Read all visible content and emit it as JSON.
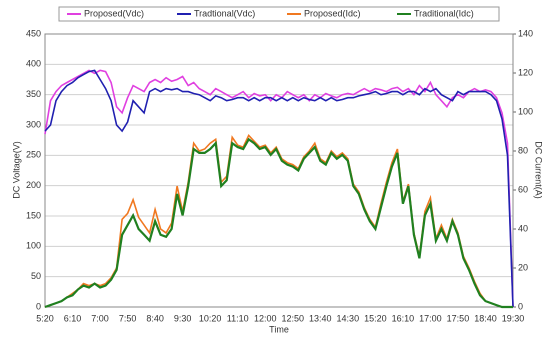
{
  "chart_data": {
    "type": "line",
    "x_label": "Time",
    "y_label": "DC Voltage(V)",
    "y2_label": "DC Current(A)",
    "categories": [
      "5:20",
      null,
      null,
      null,
      null,
      "6:10",
      null,
      null,
      null,
      null,
      "7:00",
      null,
      null,
      null,
      null,
      "7:50",
      null,
      null,
      null,
      null,
      "8:40",
      null,
      null,
      null,
      null,
      "9:30",
      null,
      null,
      null,
      null,
      "10:20",
      null,
      null,
      null,
      null,
      "11:10",
      null,
      null,
      null,
      null,
      "12:00",
      null,
      null,
      null,
      null,
      "12:50",
      null,
      null,
      null,
      null,
      "13:40",
      null,
      null,
      null,
      null,
      "14:30",
      null,
      null,
      null,
      null,
      "15:20",
      null,
      null,
      null,
      null,
      "16:10",
      null,
      null,
      null,
      null,
      "17:00",
      null,
      null,
      null,
      null,
      "17:50",
      null,
      null,
      null,
      null,
      "18:40",
      null,
      null,
      null,
      null,
      "19:30"
    ],
    "ylim": [
      0,
      450
    ],
    "yticks": [
      0,
      50,
      100,
      150,
      200,
      250,
      300,
      350,
      400,
      450
    ],
    "y2lim": [
      0,
      140
    ],
    "y2ticks": [
      0,
      20,
      40,
      60,
      80,
      100,
      120,
      140
    ],
    "grid": true,
    "legend": "top",
    "series": [
      {
        "name": "Proposed(Vdc)",
        "color": "#e040e0",
        "values": [
          285,
          340,
          355,
          365,
          370,
          375,
          380,
          385,
          390,
          385,
          390,
          388,
          370,
          330,
          320,
          345,
          365,
          360,
          355,
          370,
          375,
          370,
          378,
          372,
          375,
          380,
          365,
          370,
          360,
          355,
          350,
          360,
          355,
          350,
          345,
          350,
          355,
          345,
          352,
          348,
          350,
          340,
          350,
          345,
          355,
          350,
          345,
          350,
          340,
          350,
          345,
          352,
          348,
          345,
          350,
          352,
          350,
          355,
          360,
          355,
          360,
          358,
          355,
          360,
          362,
          355,
          360,
          350,
          365,
          355,
          370,
          350,
          340,
          330,
          345,
          350,
          345,
          355,
          360,
          355,
          358,
          355,
          345,
          320,
          270,
          0
        ]
      },
      {
        "name": "Tradtional(Vdc)",
        "color": "#2020b0",
        "values": [
          290,
          300,
          340,
          355,
          365,
          370,
          378,
          383,
          388,
          390,
          375,
          360,
          340,
          300,
          290,
          305,
          340,
          330,
          320,
          355,
          360,
          355,
          360,
          358,
          360,
          355,
          355,
          352,
          350,
          345,
          340,
          348,
          345,
          340,
          342,
          345,
          345,
          340,
          345,
          340,
          345,
          345,
          340,
          345,
          340,
          345,
          340,
          345,
          342,
          340,
          345,
          340,
          345,
          340,
          342,
          345,
          345,
          348,
          350,
          352,
          355,
          350,
          352,
          355,
          355,
          350,
          355,
          355,
          350,
          360,
          355,
          360,
          350,
          345,
          340,
          355,
          350,
          355,
          355,
          355,
          355,
          350,
          340,
          310,
          250,
          0
        ]
      },
      {
        "name": "Proposed(Idc)",
        "color": "#f07820",
        "axis": "y2",
        "values": [
          0,
          1,
          2,
          3,
          5,
          7,
          9,
          12,
          11,
          12,
          11,
          12,
          15,
          20,
          45,
          48,
          55,
          46,
          42,
          38,
          50,
          40,
          38,
          43,
          62,
          49,
          64,
          84,
          80,
          81,
          84,
          86,
          64,
          67,
          87,
          83,
          82,
          88,
          85,
          82,
          83,
          79,
          82,
          76,
          74,
          73,
          71,
          77,
          80,
          84,
          76,
          74,
          80,
          77,
          79,
          76,
          63,
          59,
          51,
          45,
          41,
          53,
          64,
          74,
          81,
          54,
          63,
          38,
          26,
          49,
          56,
          35,
          42,
          35,
          45,
          38,
          26,
          20,
          13,
          7,
          3,
          2,
          1,
          0,
          0,
          0
        ]
      },
      {
        "name": "Traditional(Idc)",
        "color": "#208020",
        "axis": "y2",
        "values": [
          0,
          1,
          2,
          3,
          5,
          6,
          9,
          11,
          10,
          12,
          10,
          11,
          14,
          19,
          37,
          42,
          47,
          40,
          37,
          34,
          44,
          37,
          36,
          40,
          58,
          47,
          62,
          81,
          79,
          79,
          81,
          84,
          62,
          65,
          84,
          82,
          81,
          86,
          84,
          81,
          82,
          78,
          81,
          75,
          73,
          72,
          70,
          76,
          79,
          82,
          75,
          73,
          79,
          76,
          78,
          75,
          62,
          58,
          50,
          44,
          40,
          51,
          62,
          72,
          79,
          53,
          62,
          37,
          25,
          47,
          53,
          34,
          40,
          34,
          44,
          37,
          25,
          19,
          12,
          6,
          3,
          2,
          1,
          0,
          0,
          0
        ]
      }
    ]
  }
}
